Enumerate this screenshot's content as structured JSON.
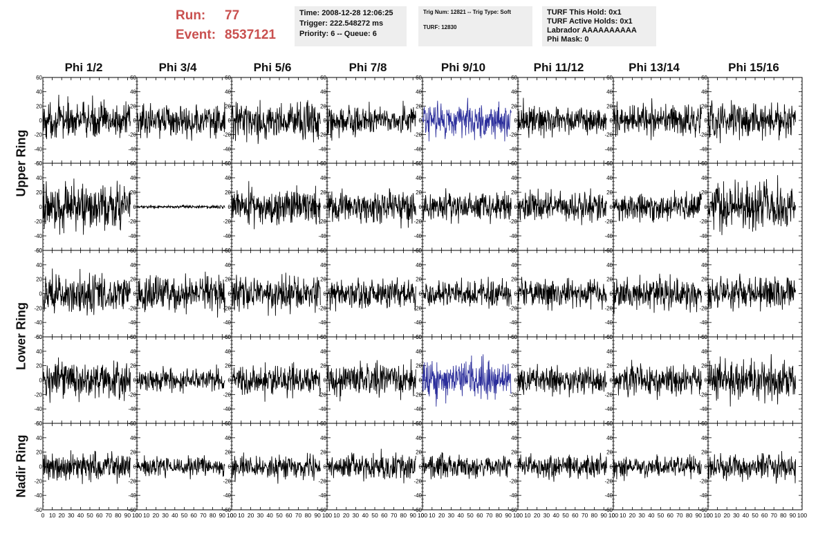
{
  "header": {
    "run_label": "Run:",
    "run_value": "77",
    "event_label": "Event:",
    "event_value": "8537121",
    "info1": [
      "Time: 2008-12-28 12:06:25",
      "Trigger: 222.548272 ms",
      "Priority: 6 -- Queue: 6"
    ],
    "info2": [
      "Trig Num: 12821 -- Trig Type: Soft",
      "",
      "TURF: 12830"
    ],
    "info3": [
      "TURF This Hold: 0x1",
      "TURF Active Holds: 0x1",
      "Labrador AAAAAAAAAA",
      "Phi Mask: 0"
    ]
  },
  "columns": [
    "Phi 1/2",
    "Phi 3/4",
    "Phi 5/6",
    "Phi 7/8",
    "Phi 9/10",
    "Phi 11/12",
    "Phi 13/14",
    "Phi 15/16"
  ],
  "ring_labels": [
    {
      "text": "Upper Ring",
      "rows": [
        0,
        1
      ]
    },
    {
      "text": "Lower Ring",
      "rows": [
        2,
        3
      ]
    },
    {
      "text": "Nadir Ring",
      "rows": [
        4
      ]
    }
  ],
  "colors": {
    "trace": "#000000",
    "highlight_trace": "#2b2e9b",
    "run_text": "#c9504f",
    "info_bg": "#eeeeee"
  },
  "chart_data": {
    "type": "line",
    "grid_rows": 5,
    "grid_cols": 8,
    "xlim": [
      0,
      100
    ],
    "ylim": [
      -60,
      60
    ],
    "x_ticks": [
      0,
      10,
      20,
      30,
      40,
      50,
      60,
      70,
      80,
      90,
      100
    ],
    "y_ticks": [
      -60,
      -40,
      -20,
      0,
      20,
      40,
      60
    ],
    "x_tick_labels": [
      "0",
      "10",
      "20",
      "30",
      "40",
      "50",
      "60",
      "70",
      "80",
      "90",
      "100"
    ],
    "y_tick_labels": [
      "-60",
      "-40",
      "-20",
      "0",
      "20",
      "40",
      "60"
    ],
    "trace_samples": 260,
    "trace_x_range": [
      0,
      93
    ],
    "traces": [
      {
        "row": 0,
        "col": 0,
        "amplitude": 22,
        "highlight": false
      },
      {
        "row": 0,
        "col": 1,
        "amplitude": 20,
        "highlight": false
      },
      {
        "row": 0,
        "col": 2,
        "amplitude": 22,
        "highlight": false
      },
      {
        "row": 0,
        "col": 3,
        "amplitude": 18,
        "highlight": false
      },
      {
        "row": 0,
        "col": 4,
        "amplitude": 22,
        "highlight": true
      },
      {
        "row": 0,
        "col": 5,
        "amplitude": 18,
        "highlight": false
      },
      {
        "row": 0,
        "col": 6,
        "amplitude": 20,
        "highlight": false
      },
      {
        "row": 0,
        "col": 7,
        "amplitude": 22,
        "highlight": false
      },
      {
        "row": 1,
        "col": 0,
        "amplitude": 28,
        "highlight": false
      },
      {
        "row": 1,
        "col": 1,
        "amplitude": 2,
        "highlight": false
      },
      {
        "row": 1,
        "col": 2,
        "amplitude": 22,
        "highlight": false
      },
      {
        "row": 1,
        "col": 3,
        "amplitude": 20,
        "highlight": false
      },
      {
        "row": 1,
        "col": 4,
        "amplitude": 18,
        "highlight": false
      },
      {
        "row": 1,
        "col": 5,
        "amplitude": 18,
        "highlight": false
      },
      {
        "row": 1,
        "col": 6,
        "amplitude": 16,
        "highlight": false
      },
      {
        "row": 1,
        "col": 7,
        "amplitude": 28,
        "highlight": false
      },
      {
        "row": 2,
        "col": 0,
        "amplitude": 24,
        "highlight": false
      },
      {
        "row": 2,
        "col": 1,
        "amplitude": 22,
        "highlight": false
      },
      {
        "row": 2,
        "col": 2,
        "amplitude": 20,
        "highlight": false
      },
      {
        "row": 2,
        "col": 3,
        "amplitude": 18,
        "highlight": false
      },
      {
        "row": 2,
        "col": 4,
        "amplitude": 16,
        "highlight": false
      },
      {
        "row": 2,
        "col": 5,
        "amplitude": 18,
        "highlight": false
      },
      {
        "row": 2,
        "col": 6,
        "amplitude": 20,
        "highlight": false
      },
      {
        "row": 2,
        "col": 7,
        "amplitude": 20,
        "highlight": false
      },
      {
        "row": 3,
        "col": 0,
        "amplitude": 22,
        "highlight": false
      },
      {
        "row": 3,
        "col": 1,
        "amplitude": 14,
        "highlight": false
      },
      {
        "row": 3,
        "col": 2,
        "amplitude": 18,
        "highlight": false
      },
      {
        "row": 3,
        "col": 3,
        "amplitude": 20,
        "highlight": false
      },
      {
        "row": 3,
        "col": 4,
        "amplitude": 22,
        "highlight": true
      },
      {
        "row": 3,
        "col": 5,
        "amplitude": 16,
        "highlight": false
      },
      {
        "row": 3,
        "col": 6,
        "amplitude": 18,
        "highlight": false
      },
      {
        "row": 3,
        "col": 7,
        "amplitude": 24,
        "highlight": false
      },
      {
        "row": 4,
        "col": 0,
        "amplitude": 18,
        "highlight": false
      },
      {
        "row": 4,
        "col": 1,
        "amplitude": 12,
        "highlight": false
      },
      {
        "row": 4,
        "col": 2,
        "amplitude": 14,
        "highlight": false
      },
      {
        "row": 4,
        "col": 3,
        "amplitude": 16,
        "highlight": false
      },
      {
        "row": 4,
        "col": 4,
        "amplitude": 14,
        "highlight": false
      },
      {
        "row": 4,
        "col": 5,
        "amplitude": 14,
        "highlight": false
      },
      {
        "row": 4,
        "col": 6,
        "amplitude": 14,
        "highlight": false
      },
      {
        "row": 4,
        "col": 7,
        "amplitude": 16,
        "highlight": false
      }
    ]
  }
}
